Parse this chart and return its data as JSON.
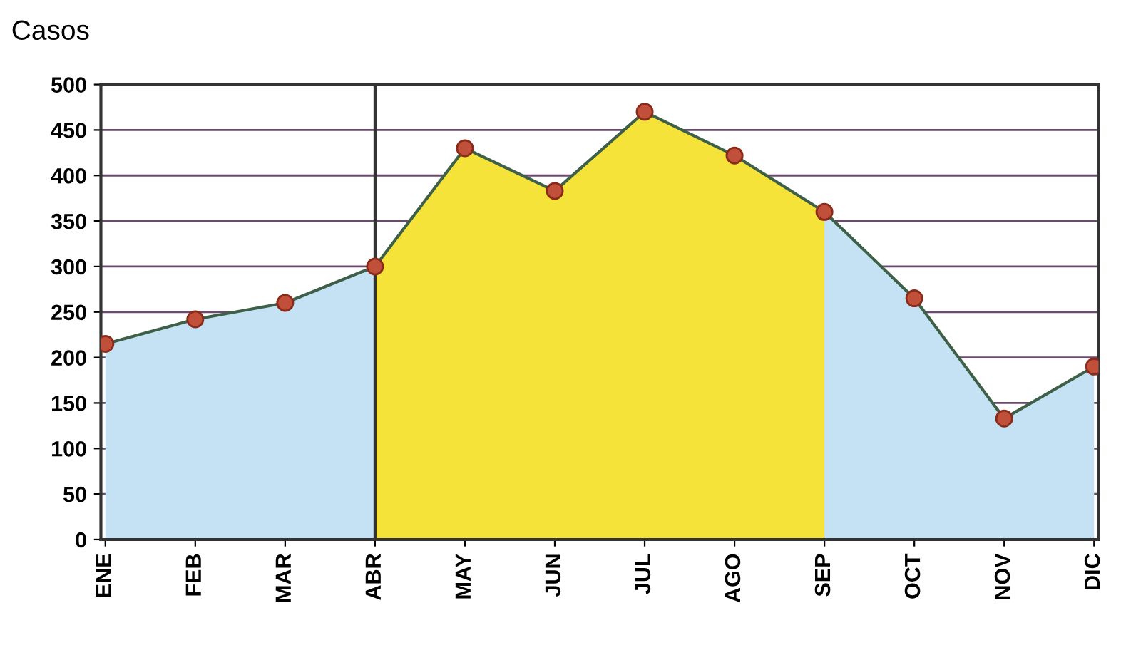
{
  "chart_data": {
    "type": "area",
    "ylabel": "Casos",
    "categories": [
      "ENE",
      "FEB",
      "MAR",
      "ABR",
      "MAY",
      "JUN",
      "JUL",
      "AGO",
      "SEP",
      "OCT",
      "NOV",
      "DIC"
    ],
    "series": [
      {
        "type": "area",
        "color": "#c4e2f4",
        "marker": "circle",
        "values": [
          215,
          242,
          260,
          300,
          430,
          383,
          470,
          422,
          360,
          265,
          133,
          190
        ]
      },
      {
        "color": "#f6e33a",
        "values": [
          null,
          null,
          null,
          300,
          430,
          383,
          470,
          422,
          360,
          null,
          null,
          null
        ]
      }
    ],
    "ylim": [
      0,
      500
    ],
    "yticks": [
      0,
      50,
      100,
      150,
      200,
      250,
      300,
      350,
      400,
      450,
      500
    ],
    "grid": "y",
    "ref_lines": [
      {
        "axis": "x",
        "value": "ABR",
        "color": "#333333"
      }
    ]
  }
}
